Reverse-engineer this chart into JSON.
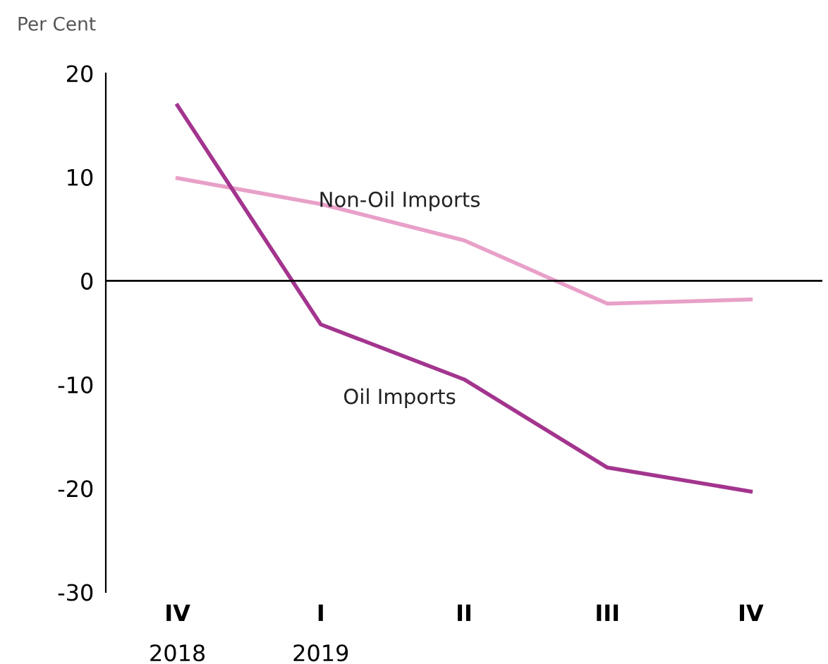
{
  "chart_data": {
    "type": "line",
    "ylabel": "Per Cent",
    "categories": [
      "IV\n2018",
      "I\n2019",
      "II",
      "III",
      "IV"
    ],
    "series": [
      {
        "name": "Non-Oil Imports",
        "color": "#e8a0c8",
        "values": [
          9.9,
          7.4,
          3.9,
          -2.2,
          -1.8
        ]
      },
      {
        "name": "Oil Imports",
        "color": "#a3358e",
        "values": [
          16.9,
          -4.2,
          -9.5,
          -18,
          -20.3
        ]
      }
    ],
    "ylim": [
      -30,
      20
    ],
    "yticks": [
      -30,
      -20,
      -10,
      0,
      10,
      20
    ],
    "ref_lines": [
      {
        "axis": "y",
        "value": 0,
        "color": "#000000"
      }
    ],
    "grid": false,
    "legend": false,
    "marker": "none",
    "line_style": "solid"
  }
}
